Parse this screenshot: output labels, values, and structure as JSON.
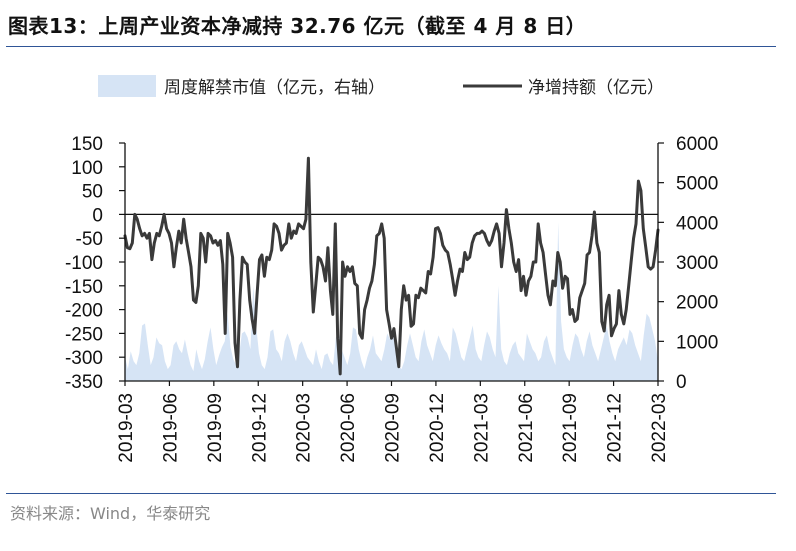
{
  "title": "图表13：上周产业资本净减持 32.76 亿元（截至 4 月 8 日）",
  "source": "资料来源：Wind，华泰研究",
  "colors": {
    "area": "#d6e4f5",
    "line": "#3a3a3a",
    "rule": "#2f5597"
  },
  "chart_data": {
    "type": "line",
    "legend": {
      "placement": "top",
      "entries": [
        "周度解禁市值（亿元，右轴）",
        "净增持额（亿元）"
      ]
    },
    "x_tick_labels": [
      "2019-03",
      "2019-06",
      "2019-09",
      "2019-12",
      "2020-03",
      "2020-06",
      "2020-09",
      "2020-12",
      "2021-03",
      "2021-06",
      "2021-09",
      "2021-12",
      "2022-03"
    ],
    "y_left": {
      "range": [
        -350,
        150
      ],
      "ticks": [
        "150",
        "100",
        "50",
        "0",
        "-50",
        "-100",
        "-150",
        "-200",
        "-250",
        "-300",
        "-350"
      ]
    },
    "y_right": {
      "range": [
        0,
        6000
      ],
      "ticks": [
        "6000",
        "5000",
        "4000",
        "3000",
        "2000",
        "1000",
        "0"
      ]
    },
    "series": [
      {
        "name": "周度解禁市值（亿元，右轴）",
        "type": "area",
        "axis": "right",
        "values": [
          600,
          300,
          750,
          500,
          400,
          700,
          1400,
          1450,
          900,
          400,
          600,
          1100,
          950,
          900,
          500,
          300,
          400,
          900,
          1000,
          800,
          700,
          1050,
          700,
          400,
          250,
          800,
          500,
          300,
          550,
          1000,
          1350,
          800,
          400,
          650,
          850,
          1000,
          1700,
          850,
          550,
          400,
          650,
          1200,
          1250,
          1100,
          800,
          2400,
          1400,
          700,
          400,
          300,
          600,
          1250,
          1300,
          800,
          700,
          500,
          1000,
          1200,
          1000,
          700,
          500,
          900,
          1000,
          800,
          600,
          500,
          400,
          800,
          500,
          300,
          650,
          700,
          500,
          400,
          1100,
          1200,
          800,
          600,
          400,
          700,
          1350,
          1300,
          800,
          500,
          300,
          600,
          800,
          1150,
          700,
          600,
          500,
          800,
          1200,
          1050,
          1300,
          700,
          400,
          300,
          500,
          900,
          1200,
          900,
          600,
          500,
          1000,
          1300,
          900,
          700,
          500,
          900,
          1150,
          950,
          800,
          700,
          500,
          1350,
          1200,
          900,
          600,
          500,
          800,
          1100,
          1400,
          800,
          600,
          500,
          900,
          1250,
          1100,
          800,
          600,
          2400,
          800,
          500,
          400,
          700,
          900,
          1000,
          700,
          600,
          500,
          1200,
          1000,
          800,
          700,
          500,
          600,
          1000,
          1150,
          800,
          600,
          400,
          4000,
          1500,
          800,
          600,
          500,
          900,
          1200,
          1100,
          800,
          600,
          1000,
          1250,
          900,
          700,
          500,
          800,
          1100,
          1400,
          1000,
          700,
          500,
          800,
          950,
          1100,
          900,
          1300,
          1200,
          900,
          700,
          500,
          1150,
          1700,
          1600,
          1300,
          1000,
          500
        ],
        "area_y_values": [],
        "note": ""
      },
      {
        "name": "净增持额（亿元）",
        "type": "line",
        "axis": "left",
        "values": [
          -45,
          -70,
          -72,
          -60,
          0,
          -10,
          -30,
          -45,
          -40,
          -50,
          -40,
          -95,
          -60,
          -40,
          -45,
          -25,
          0,
          -30,
          -40,
          -60,
          -110,
          -70,
          -35,
          -60,
          -10,
          -50,
          -80,
          -110,
          -180,
          -185,
          -150,
          -40,
          -50,
          -100,
          -40,
          -45,
          -60,
          -55,
          -65,
          -55,
          -105,
          -250,
          -40,
          -60,
          -90,
          -270,
          -320,
          -180,
          -90,
          -100,
          -105,
          -180,
          -220,
          -250,
          -170,
          -95,
          -85,
          -130,
          -90,
          -95,
          -75,
          -20,
          -25,
          -40,
          -75,
          -65,
          -60,
          -20,
          -50,
          -35,
          -40,
          -20,
          -25,
          -30,
          -10,
          118,
          -100,
          -205,
          -150,
          -90,
          -95,
          -110,
          -140,
          -70,
          -160,
          -210,
          -20,
          -260,
          -335,
          -100,
          -130,
          -110,
          -120,
          -110,
          -145,
          -150,
          -250,
          -260,
          -200,
          -180,
          -155,
          -140,
          -105,
          -45,
          -40,
          -20,
          -50,
          -200,
          -230,
          -260,
          -240,
          -280,
          -320,
          -200,
          -150,
          -180,
          -170,
          -235,
          -230,
          -170,
          -175,
          -155,
          -160,
          -165,
          -120,
          -125,
          -90,
          -30,
          -28,
          -40,
          -65,
          -75,
          -80,
          -105,
          -135,
          -170,
          -140,
          -115,
          -120,
          -80,
          -95,
          -90,
          -60,
          -45,
          -40,
          -40,
          -35,
          -40,
          -55,
          -65,
          -55,
          -35,
          -20,
          -40,
          -110,
          -60,
          10,
          -30,
          -60,
          -100,
          -120,
          -95,
          -160,
          -130,
          -170,
          -140,
          -130,
          -100,
          -100,
          -20,
          -60,
          -80,
          -125,
          -170,
          -190,
          -140,
          -150,
          -80,
          -100,
          -155,
          -130,
          -135,
          -210,
          -200,
          -225,
          -220,
          -175,
          -160,
          -145,
          -85,
          -80,
          -45,
          5,
          -60,
          -80,
          -225,
          -245,
          -190,
          -170,
          -255,
          -240,
          -230,
          -160,
          -210,
          -230,
          -200,
          -150,
          -100,
          -50,
          -20,
          70,
          50,
          -30,
          -70,
          -110,
          -115,
          -110,
          -75,
          -32.76
        ],
        "area_y_values": [],
        "note": ""
      }
    ]
  }
}
